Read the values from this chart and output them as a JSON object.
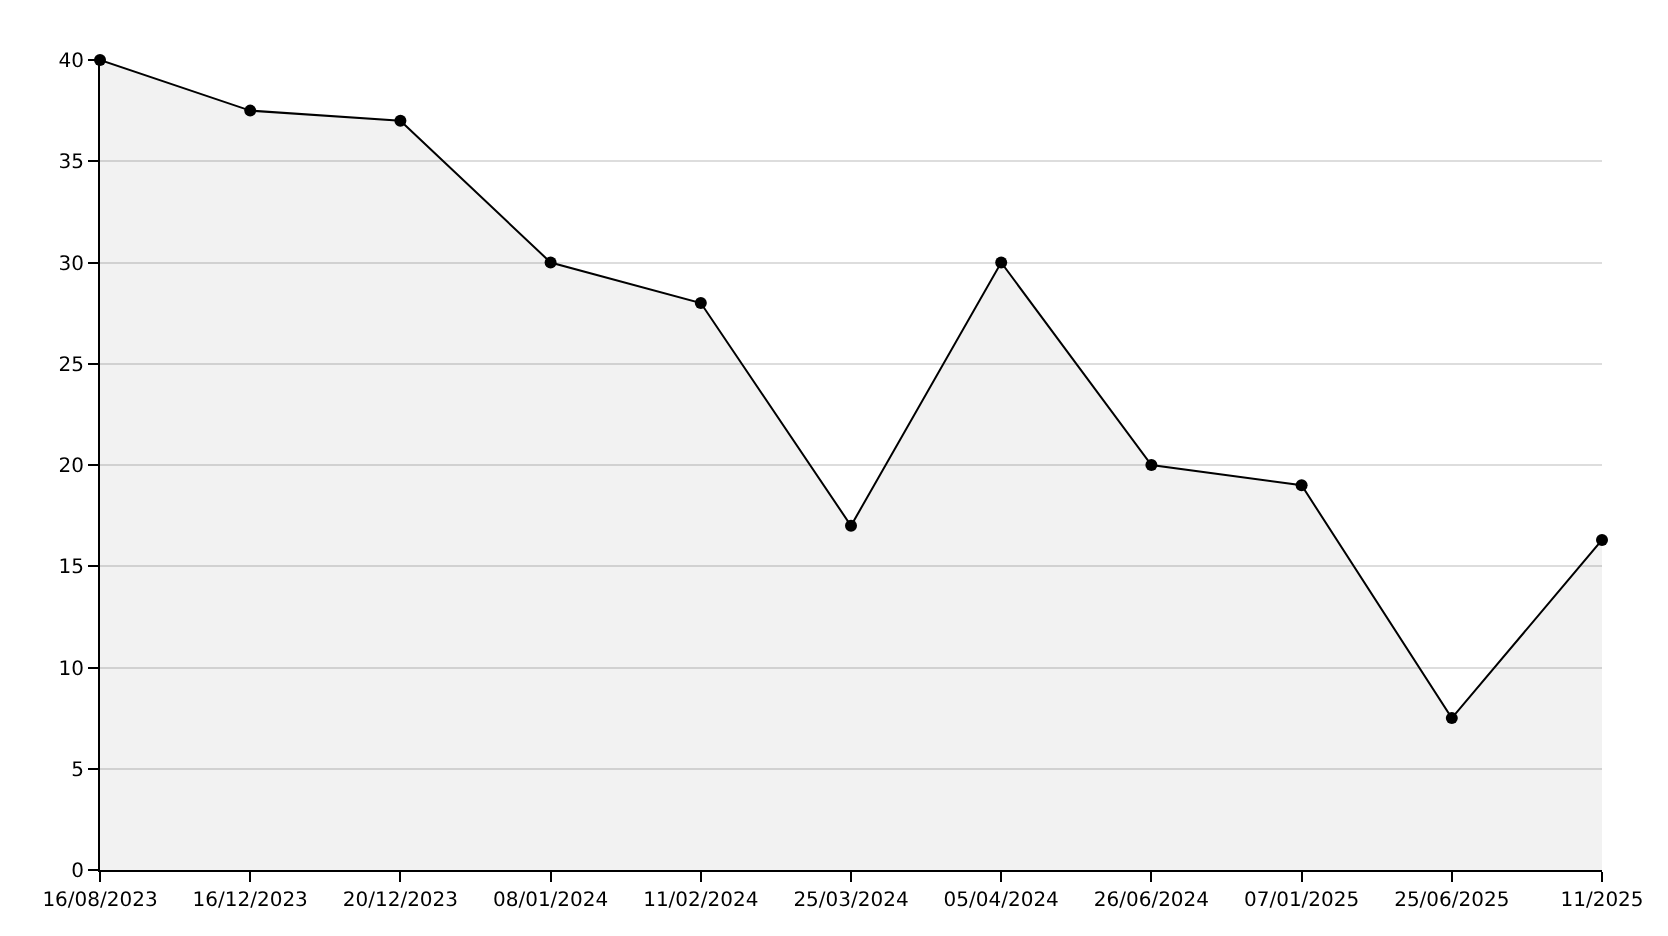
{
  "chart_data": {
    "type": "area",
    "categories": [
      "16/08/2023",
      "16/12/2023",
      "20/12/2023",
      "08/01/2024",
      "11/02/2024",
      "25/03/2024",
      "05/04/2024",
      "26/06/2024",
      "07/01/2025",
      "25/06/2025",
      "11/2025"
    ],
    "series": [
      {
        "color": "#000000",
        "values": [
          40,
          37.5,
          37,
          30,
          28,
          17,
          30,
          20,
          19,
          7.5,
          16.3
        ]
      }
    ],
    "ylim": [
      0,
      40
    ],
    "yticks": [
      0,
      5,
      10,
      15,
      20,
      25,
      30,
      35,
      40
    ],
    "grid": "y",
    "marker": "circle",
    "line_style": "solid",
    "legend": false
  }
}
